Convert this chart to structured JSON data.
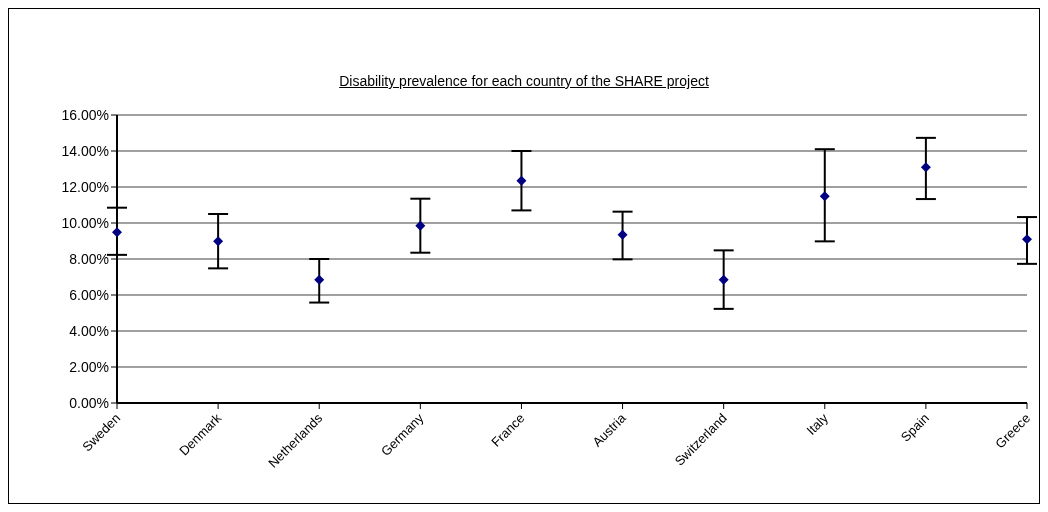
{
  "chart_data": {
    "type": "scatter",
    "title": "Disability prevalence for each country of the SHARE project",
    "categories": [
      "Sweden",
      "Denmark",
      "Netherlands",
      "Germany",
      "France",
      "Austria",
      "Switzerland",
      "Italy",
      "Spain",
      "Greece"
    ],
    "values": [
      9.48,
      8.98,
      6.85,
      9.85,
      12.35,
      9.35,
      6.85,
      11.48,
      13.1,
      9.1
    ],
    "errors": [
      [
        8.23,
        10.85
      ],
      [
        7.48,
        10.5
      ],
      [
        5.58,
        8.0
      ],
      [
        8.35,
        11.35
      ],
      [
        10.7,
        14.0
      ],
      [
        7.98,
        10.63
      ],
      [
        5.23,
        8.48
      ],
      [
        8.98,
        14.1
      ],
      [
        11.33,
        14.73
      ],
      [
        7.73,
        10.33
      ]
    ],
    "color": "#000080",
    "marker": "diamond",
    "grid": "y",
    "legend": false,
    "ylim": [
      0,
      16
    ],
    "yticks": [
      {
        "value": 0,
        "label": "0.00%"
      },
      {
        "value": 2,
        "label": "2.00%"
      },
      {
        "value": 4,
        "label": "4.00%"
      },
      {
        "value": 6,
        "label": "6.00%"
      },
      {
        "value": 8,
        "label": "8.00%"
      },
      {
        "value": 10,
        "label": "10.00%"
      },
      {
        "value": 12,
        "label": "12.00%"
      },
      {
        "value": 14,
        "label": "14.00%"
      },
      {
        "value": 16,
        "label": "16.00%"
      }
    ]
  }
}
